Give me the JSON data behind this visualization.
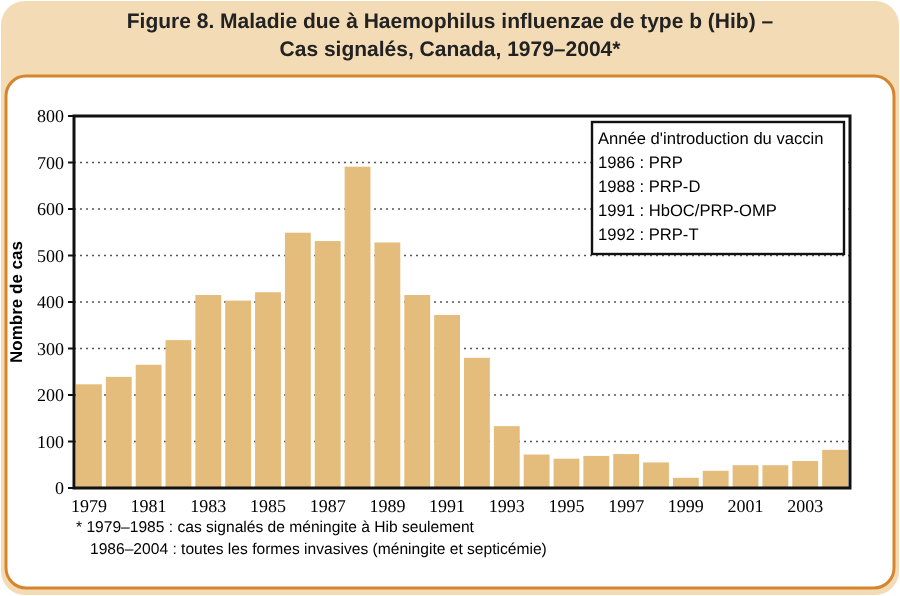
{
  "chart_data": {
    "type": "bar",
    "title": "Figure 8. Maladie due à Haemophilus influenzae de type b (Hib) – Cas signalés, Canada, 1979–2004*",
    "ylabel": "Nombre de cas",
    "categories": [
      "1979",
      null,
      "1981",
      null,
      "1983",
      null,
      "1985",
      null,
      "1987",
      null,
      "1989",
      null,
      "1991",
      null,
      "1993",
      null,
      "1995",
      null,
      "1997",
      null,
      "1999",
      null,
      "2001",
      null,
      "2003",
      null
    ],
    "values": [
      223,
      239,
      265,
      318,
      415,
      403,
      421,
      549,
      531,
      691,
      528,
      415,
      372,
      280,
      133,
      72,
      63,
      69,
      73,
      55,
      22,
      37,
      49,
      49,
      58,
      82
    ],
    "color": "#e4bc7c",
    "ylim": [
      0,
      800
    ],
    "yticks": [
      0,
      100,
      200,
      300,
      400,
      500,
      600,
      700,
      800
    ],
    "grid": "y",
    "annotations": [
      "Année d'introduction du vaccin",
      "1986 : PRP",
      "1988 : PRP-D",
      "1991 : HbOC/PRP-OMP",
      "1992 : PRP-T",
      "* 1979–1985 : cas signalés de méningite à Hib seulement",
      "1986–2004 : toutes les formes invasives (méningite et septicémie)"
    ]
  }
}
